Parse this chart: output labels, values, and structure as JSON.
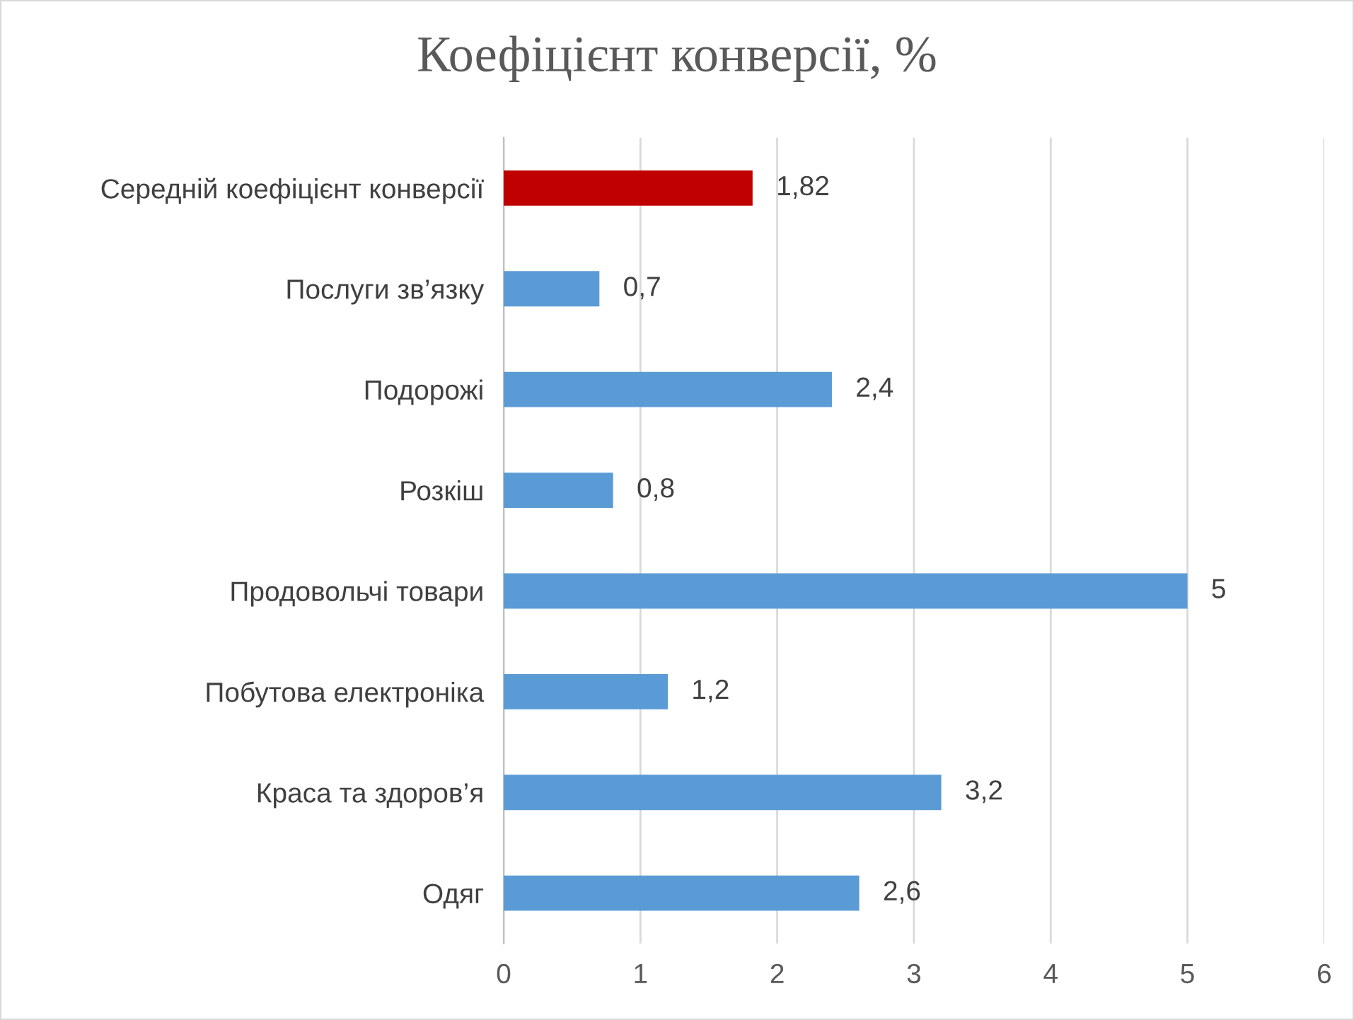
{
  "chart_data": {
    "type": "bar",
    "orientation": "horizontal",
    "title": "Коефіцієнт конверсії, %",
    "categories": [
      "Середній коефіцієнт конверсії",
      "Послуги зв’язку",
      "Подорожі",
      "Розкіш",
      "Продовольчі товари",
      "Побутова електроніка",
      "Краса та здоров’я",
      "Одяг"
    ],
    "values": [
      1.82,
      0.7,
      2.4,
      0.8,
      5,
      1.2,
      3.2,
      2.6
    ],
    "colors": [
      "#c00000",
      "#5b9bd5",
      "#5b9bd5",
      "#5b9bd5",
      "#5b9bd5",
      "#5b9bd5",
      "#5b9bd5",
      "#5b9bd5"
    ],
    "value_labels": [
      "1,82",
      "0,7",
      "2,4",
      "0,8",
      "5",
      "1,2",
      "3,2",
      "2,6"
    ],
    "xlim": [
      0,
      6
    ],
    "xticks": [
      0,
      1,
      2,
      3,
      4,
      5,
      6
    ],
    "grid": "x",
    "legend": false
  }
}
